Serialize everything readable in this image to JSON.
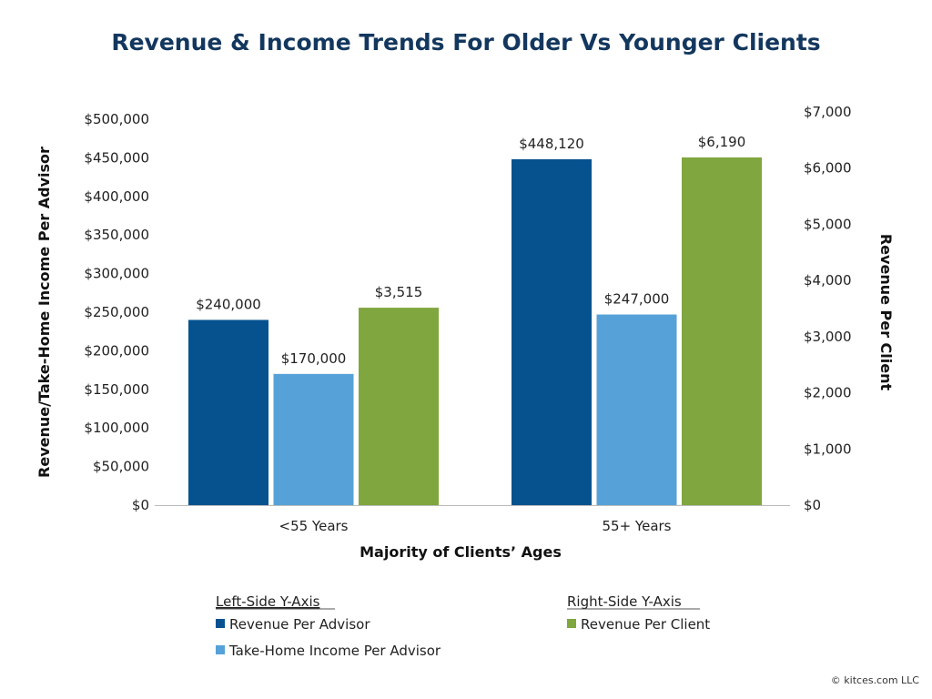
{
  "chart_data": {
    "type": "bar",
    "title": "Revenue & Income Trends For Older Vs Younger Clients",
    "xlabel": "Majority of Clients’ Ages",
    "ylabel_left": "Revenue/Take-Home Income Per Advisor",
    "ylabel_right": "Revenue Per Client",
    "categories": [
      "<55 Years",
      "55+ Years"
    ],
    "ylim_left": [
      0,
      500000
    ],
    "ylim_right": [
      0,
      7000
    ],
    "yticks_left": [
      "$0",
      "$50,000",
      "$100,000",
      "$150,000",
      "$200,000",
      "$250,000",
      "$300,000",
      "$350,000",
      "$400,000",
      "$450,000",
      "$500,000"
    ],
    "yticks_right": [
      "$0",
      "$1,000",
      "$2,000",
      "$3,000",
      "$4,000",
      "$5,000",
      "$6,000",
      "$7,000"
    ],
    "grid": false,
    "series": [
      {
        "name": "Revenue Per Advisor",
        "axis": "left",
        "color": "#05528f",
        "values": [
          240000,
          448120
        ],
        "labels": [
          "$240,000",
          "$448,120"
        ]
      },
      {
        "name": "Take-Home Income Per Advisor",
        "axis": "left",
        "color": "#56a2d8",
        "values": [
          170000,
          247000
        ],
        "labels": [
          "$170,000",
          "$247,000"
        ]
      },
      {
        "name": "Revenue Per Client",
        "axis": "right",
        "color": "#80a63f",
        "values": [
          3515,
          6190
        ],
        "labels": [
          "$3,515",
          "$6,190"
        ]
      }
    ],
    "legend": {
      "placement": "bottom",
      "left_heading": "Left-Side Y-Axis",
      "right_heading": "Right-Side Y-Axis"
    }
  },
  "colors": {
    "title": "#13375e"
  },
  "copyright": "© kitces.com LLC"
}
